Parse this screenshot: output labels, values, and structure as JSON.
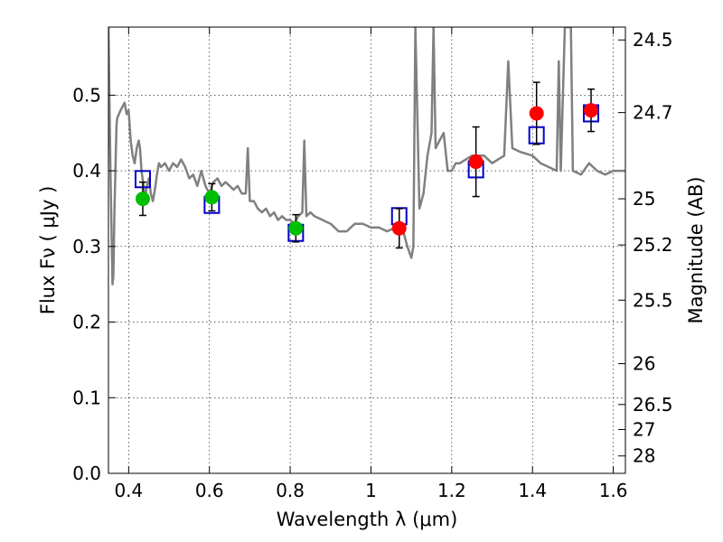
{
  "chart_data": {
    "type": "scatter",
    "xlabel": "Wavelength  λ (μm)",
    "ylabel": "Flux  Fν  ( μJy )",
    "y2label": "Magnitude (AB)",
    "xlim": [
      0.35,
      1.63
    ],
    "ylim": [
      0.0,
      0.59
    ],
    "grid": true,
    "x_ticks": [
      0.4,
      0.6,
      0.8,
      1.0,
      1.2,
      1.4,
      1.6
    ],
    "x_tick_labels": [
      "0.4",
      "0.6",
      "0.8",
      "1",
      "1.2",
      "1.4",
      "1.6"
    ],
    "y_ticks": [
      0.0,
      0.1,
      0.2,
      0.3,
      0.4,
      0.5
    ],
    "y_tick_labels": [
      "0.0",
      "0.1",
      "0.2",
      "0.3",
      "0.4",
      "0.5"
    ],
    "y2_ticks": [
      {
        "label": "24.5",
        "flux": 0.573
      },
      {
        "label": "24.7",
        "flux": 0.477
      },
      {
        "label": "25",
        "flux": 0.363
      },
      {
        "label": "25.2",
        "flux": 0.302
      },
      {
        "label": "25.5",
        "flux": 0.229
      },
      {
        "label": "26",
        "flux": 0.145
      },
      {
        "label": "26.5",
        "flux": 0.091
      },
      {
        "label": "27",
        "flux": 0.058
      },
      {
        "label": "28",
        "flux": 0.023
      }
    ],
    "series": [
      {
        "marker": "circle",
        "color": "#00bf00",
        "points": [
          {
            "x": 0.435,
            "y": 0.363,
            "err": 0.022
          },
          {
            "x": 0.606,
            "y": 0.365,
            "err": 0.018
          },
          {
            "x": 0.814,
            "y": 0.324,
            "err": 0.018
          }
        ]
      },
      {
        "marker": "circle",
        "color": "#ff0000",
        "points": [
          {
            "x": 1.07,
            "y": 0.324,
            "err": 0.026
          },
          {
            "x": 1.26,
            "y": 0.412,
            "err": 0.046
          },
          {
            "x": 1.41,
            "y": 0.476,
            "err": 0.041
          },
          {
            "x": 1.545,
            "y": 0.48,
            "err": 0.028
          }
        ]
      },
      {
        "marker": "square",
        "color": "#0000cc",
        "points": [
          {
            "x": 0.435,
            "y": 0.389
          },
          {
            "x": 0.606,
            "y": 0.355
          },
          {
            "x": 0.814,
            "y": 0.318
          },
          {
            "x": 1.07,
            "y": 0.34
          },
          {
            "x": 1.26,
            "y": 0.402
          },
          {
            "x": 1.41,
            "y": 0.447
          },
          {
            "x": 1.545,
            "y": 0.476
          }
        ]
      },
      {
        "type": "line",
        "color": "#808080",
        "x": [
          0.35,
          0.355,
          0.36,
          0.362,
          0.365,
          0.37,
          0.372,
          0.38,
          0.39,
          0.395,
          0.4,
          0.405,
          0.41,
          0.415,
          0.42,
          0.425,
          0.428,
          0.432,
          0.437,
          0.44,
          0.445,
          0.45,
          0.455,
          0.46,
          0.465,
          0.47,
          0.475,
          0.48,
          0.49,
          0.5,
          0.51,
          0.52,
          0.53,
          0.54,
          0.55,
          0.56,
          0.57,
          0.58,
          0.59,
          0.6,
          0.61,
          0.62,
          0.63,
          0.64,
          0.65,
          0.66,
          0.67,
          0.68,
          0.69,
          0.695,
          0.7,
          0.71,
          0.72,
          0.73,
          0.74,
          0.75,
          0.76,
          0.77,
          0.78,
          0.79,
          0.8,
          0.81,
          0.82,
          0.83,
          0.835,
          0.84,
          0.85,
          0.86,
          0.88,
          0.9,
          0.92,
          0.94,
          0.96,
          0.98,
          1.0,
          1.02,
          1.04,
          1.06,
          1.08,
          1.09,
          1.1,
          1.105,
          1.11,
          1.12,
          1.13,
          1.14,
          1.15,
          1.155,
          1.16,
          1.17,
          1.18,
          1.19,
          1.2,
          1.21,
          1.22,
          1.25,
          1.28,
          1.3,
          1.33,
          1.34,
          1.35,
          1.37,
          1.4,
          1.42,
          1.44,
          1.46,
          1.465,
          1.47,
          1.48,
          1.495,
          1.5,
          1.52,
          1.54,
          1.56,
          1.58,
          1.6,
          1.62,
          1.63
        ],
        "y": [
          0.59,
          0.4,
          0.25,
          0.26,
          0.35,
          0.46,
          0.47,
          0.48,
          0.49,
          0.475,
          0.48,
          0.44,
          0.42,
          0.41,
          0.43,
          0.44,
          0.43,
          0.4,
          0.38,
          0.36,
          0.38,
          0.39,
          0.37,
          0.36,
          0.375,
          0.395,
          0.41,
          0.405,
          0.41,
          0.4,
          0.41,
          0.405,
          0.415,
          0.405,
          0.39,
          0.395,
          0.38,
          0.4,
          0.38,
          0.37,
          0.385,
          0.39,
          0.38,
          0.385,
          0.38,
          0.375,
          0.38,
          0.37,
          0.37,
          0.43,
          0.36,
          0.36,
          0.35,
          0.345,
          0.35,
          0.34,
          0.345,
          0.335,
          0.34,
          0.335,
          0.335,
          0.33,
          0.34,
          0.345,
          0.44,
          0.34,
          0.345,
          0.34,
          0.335,
          0.33,
          0.32,
          0.32,
          0.33,
          0.33,
          0.325,
          0.325,
          0.32,
          0.325,
          0.32,
          0.3,
          0.285,
          0.3,
          0.59,
          0.35,
          0.37,
          0.42,
          0.45,
          0.59,
          0.43,
          0.44,
          0.45,
          0.4,
          0.4,
          0.41,
          0.41,
          0.42,
          0.42,
          0.41,
          0.42,
          0.545,
          0.43,
          0.425,
          0.42,
          0.41,
          0.405,
          0.4,
          0.545,
          0.4,
          0.59,
          0.59,
          0.4,
          0.395,
          0.41,
          0.4,
          0.395,
          0.4,
          0.4,
          0.4
        ]
      }
    ]
  }
}
